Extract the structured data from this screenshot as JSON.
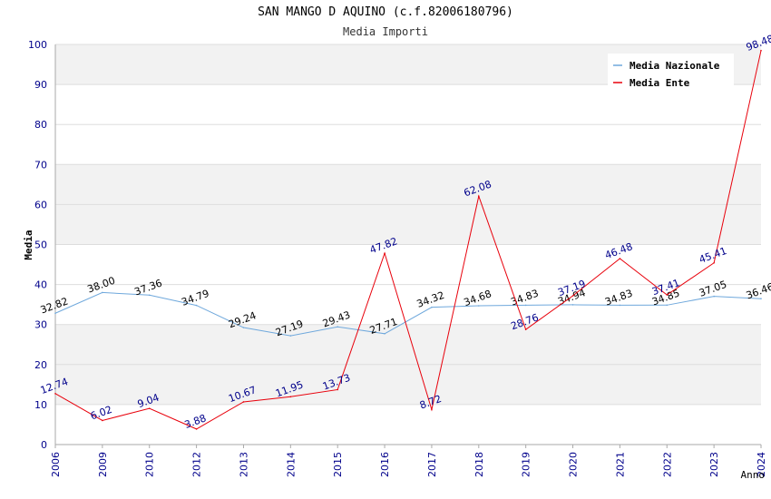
{
  "chart_data": {
    "type": "line",
    "title": "SAN MANGO D AQUINO (c.f.82006180796)",
    "subtitle": "Media Importi",
    "xlabel": "Anno",
    "ylabel": "Media",
    "ylim": [
      0,
      100
    ],
    "yticks": [
      0,
      10,
      20,
      30,
      40,
      50,
      60,
      70,
      80,
      90,
      100
    ],
    "categories": [
      "2006",
      "2009",
      "2010",
      "2012",
      "2013",
      "2014",
      "2015",
      "2016",
      "2017",
      "2018",
      "2019",
      "2020",
      "2021",
      "2022",
      "2023",
      "2024"
    ],
    "series": [
      {
        "name": "Media Nazionale",
        "color": "#6fa8dc",
        "label_color": "#000000",
        "values": [
          32.82,
          38.0,
          37.36,
          34.79,
          29.24,
          27.19,
          29.43,
          27.71,
          34.32,
          34.68,
          34.83,
          34.94,
          34.83,
          34.85,
          37.05,
          36.46
        ],
        "labels": [
          "32.82",
          "38.00",
          "37.36",
          "34.79",
          "29.24",
          "27.19",
          "29.43",
          "27.71",
          "34.32",
          "34.68",
          "34.83",
          "34.94",
          "34.83",
          "34.85",
          "37.05",
          "36.46"
        ]
      },
      {
        "name": "Media Ente",
        "color": "#e8000b",
        "label_color": "#00008b",
        "values": [
          12.74,
          6.02,
          9.04,
          3.88,
          10.67,
          11.95,
          13.73,
          47.82,
          8.72,
          62.08,
          28.76,
          37.19,
          46.48,
          37.41,
          45.41,
          98.48
        ],
        "labels": [
          "12.74",
          "6.02",
          "9.04",
          "3.88",
          "10.67",
          "11.95",
          "13.73",
          "47.82",
          "8.72",
          "62.08",
          "28.76",
          "37.19",
          "46.48",
          "37.41",
          "45.41",
          "98.48"
        ]
      }
    ],
    "legend": {
      "placement": "top-right"
    },
    "grid": true,
    "band_color": "#f2f2f2",
    "tick_color": "#00008b"
  }
}
